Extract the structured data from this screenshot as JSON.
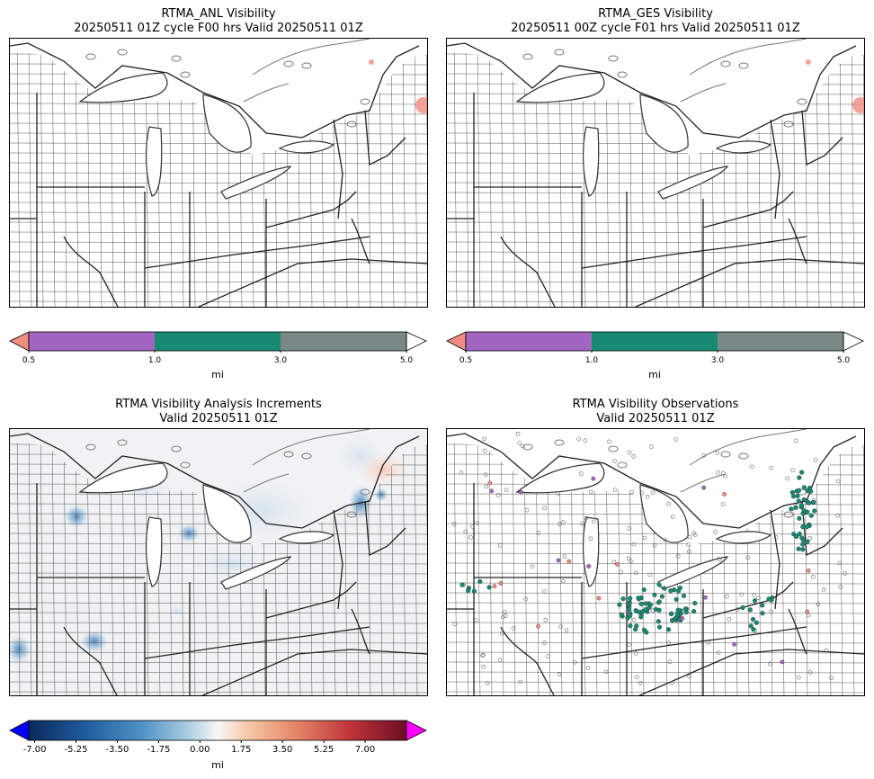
{
  "panels": [
    {
      "title_line1": "RTMA_ANL Visibility",
      "title_line2": "20250511 01Z cycle F00 hrs Valid 20250511 01Z"
    },
    {
      "title_line1": "RTMA_GES Visibility",
      "title_line2": "20250511 00Z cycle F01 hrs Valid 20250511 01Z"
    },
    {
      "title_line1": "RTMA Visibility Analysis Increments",
      "title_line2": "Valid 20250511 01Z"
    },
    {
      "title_line1": "RTMA Visibility Observations",
      "title_line2": "Valid 20250511 01Z"
    }
  ],
  "colorbar_categorical": {
    "ticks": [
      "0.5",
      "1.0",
      "3.0",
      "5.0"
    ],
    "unit": "mi",
    "colors": {
      "under": "#f08c80",
      "b1": "#a066c0",
      "b2": "#168a72",
      "b3": "#7a8886",
      "over": "#ffffff"
    }
  },
  "colorbar_diverging": {
    "ticks": [
      "-7.00",
      "-5.25",
      "-3.50",
      "-1.75",
      "0.00",
      "1.75",
      "3.50",
      "5.25",
      "7.00"
    ],
    "unit": "mi",
    "colors": {
      "under": "#0000ff",
      "over": "#ff00ff"
    }
  },
  "map_colors": {
    "borders": "#222222",
    "counties": "#555555",
    "lakes": "#666666"
  }
}
